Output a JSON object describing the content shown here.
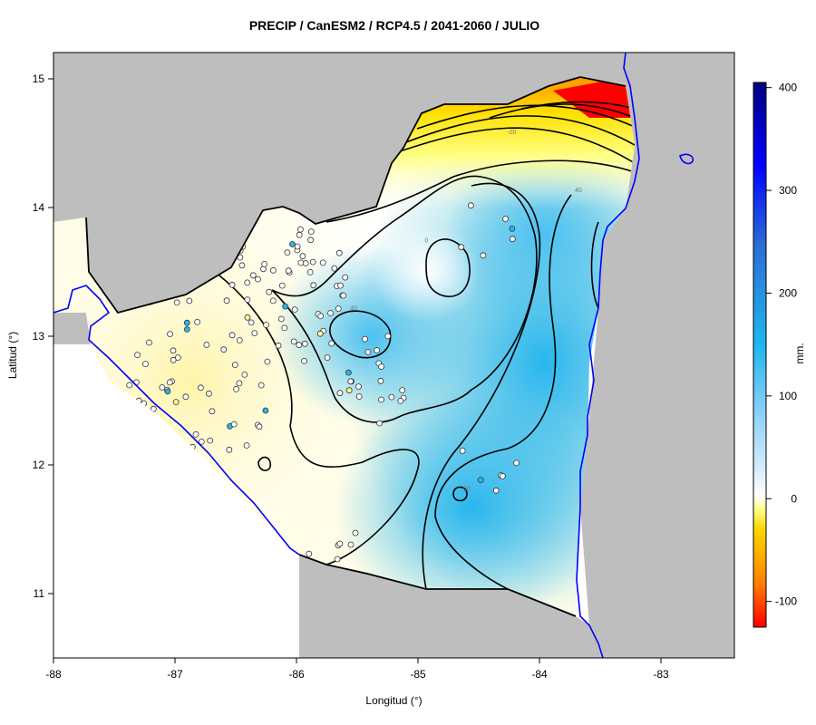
{
  "title": "PRECIP / CanESM2 / RCP4.5 / 2041-2060 / JULIO",
  "x_axis": {
    "label": "Longitud (°)",
    "ticks": [
      {
        "value": -88,
        "label": "-88"
      },
      {
        "value": -87,
        "label": "-87"
      },
      {
        "value": -86,
        "label": "-86"
      },
      {
        "value": -85,
        "label": "-85"
      },
      {
        "value": -84,
        "label": "-84"
      },
      {
        "value": -83,
        "label": "-83"
      }
    ]
  },
  "y_axis": {
    "label": "Latitud (°)",
    "ticks": [
      {
        "value": 11,
        "label": "11"
      },
      {
        "value": 12,
        "label": "12"
      },
      {
        "value": 13,
        "label": "13"
      },
      {
        "value": 14,
        "label": "14"
      },
      {
        "value": 15,
        "label": "15"
      }
    ]
  },
  "colorbar": {
    "unit": "mm.",
    "range": [
      -125,
      405
    ],
    "ticks": [
      {
        "value": 400,
        "label": "400"
      },
      {
        "value": 300,
        "label": "300"
      },
      {
        "value": 200,
        "label": "200"
      },
      {
        "value": 100,
        "label": "100"
      },
      {
        "value": 0,
        "label": "0"
      },
      {
        "value": -100,
        "label": "-100"
      }
    ],
    "colors": [
      "#ff0000",
      "#ffd700",
      "#ffff66",
      "#ffffff",
      "#87cefa",
      "#00bfff",
      "#0000ff",
      "#000080"
    ]
  },
  "contour_labels": [
    {
      "text": "-20",
      "lon": -84.23,
      "lat": 14.57
    },
    {
      "text": "40",
      "lon": -83.68,
      "lat": 14.12
    },
    {
      "text": "0",
      "lon": -84.93,
      "lat": 13.73
    },
    {
      "text": "40",
      "lon": -85.53,
      "lat": 13.2
    },
    {
      "text": "60",
      "lon": -84.6,
      "lat": 11.8
    }
  ],
  "colors": {
    "land_outside": "#bebebe",
    "coastline": "#0000ff",
    "border": "#000000",
    "station_fill_default": "#ffffff"
  }
}
